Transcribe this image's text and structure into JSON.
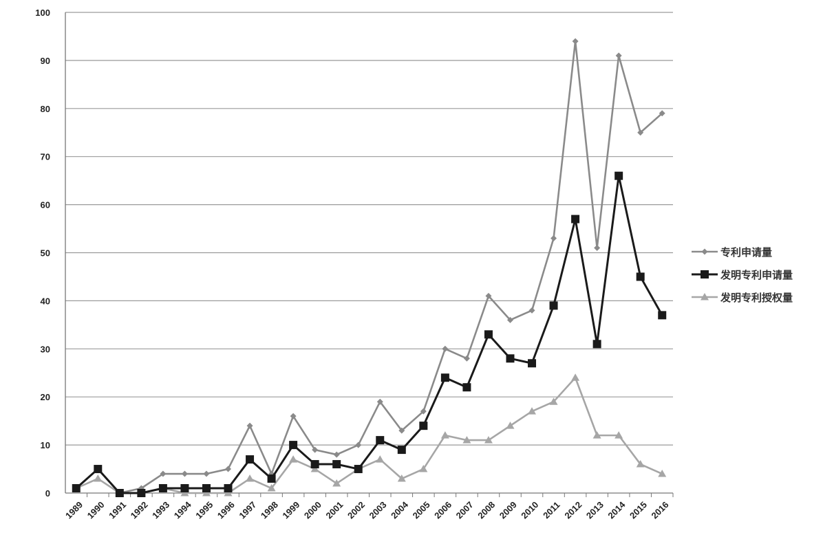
{
  "chart_data": {
    "type": "line",
    "title": "",
    "xlabel": "",
    "ylabel": "",
    "x": [
      "1989",
      "1990",
      "1991",
      "1992",
      "1993",
      "1994",
      "1995",
      "1996",
      "1997",
      "1998",
      "1999",
      "2000",
      "2001",
      "2002",
      "2003",
      "2004",
      "2005",
      "2006",
      "2007",
      "2008",
      "2009",
      "2010",
      "2011",
      "2012",
      "2013",
      "2014",
      "2015",
      "2016"
    ],
    "ylim": [
      0,
      100
    ],
    "yticks": [
      0,
      10,
      20,
      30,
      40,
      50,
      60,
      70,
      80,
      90,
      100
    ],
    "grid": true,
    "legend_position": "right",
    "series": [
      {
        "name": "专利申请量",
        "color": "#8a8a8a",
        "marker": "diamond",
        "values": [
          1,
          5,
          0,
          1,
          4,
          4,
          4,
          5,
          14,
          4,
          16,
          9,
          8,
          10,
          19,
          13,
          17,
          30,
          28,
          41,
          36,
          38,
          53,
          94,
          51,
          91,
          75,
          79
        ]
      },
      {
        "name": "发明专利申请量",
        "color": "#1a1a1a",
        "marker": "square",
        "values": [
          1,
          5,
          0,
          0,
          1,
          1,
          1,
          1,
          7,
          3,
          10,
          6,
          6,
          5,
          11,
          9,
          14,
          24,
          22,
          33,
          28,
          27,
          39,
          57,
          31,
          66,
          45,
          37
        ]
      },
      {
        "name": "发明专利授权量",
        "color": "#a6a6a6",
        "marker": "triangle",
        "values": [
          1,
          3,
          0,
          0,
          1,
          0,
          0,
          0,
          3,
          1,
          7,
          5,
          2,
          5,
          7,
          3,
          5,
          12,
          11,
          11,
          14,
          17,
          19,
          24,
          12,
          12,
          6,
          4
        ]
      }
    ]
  }
}
